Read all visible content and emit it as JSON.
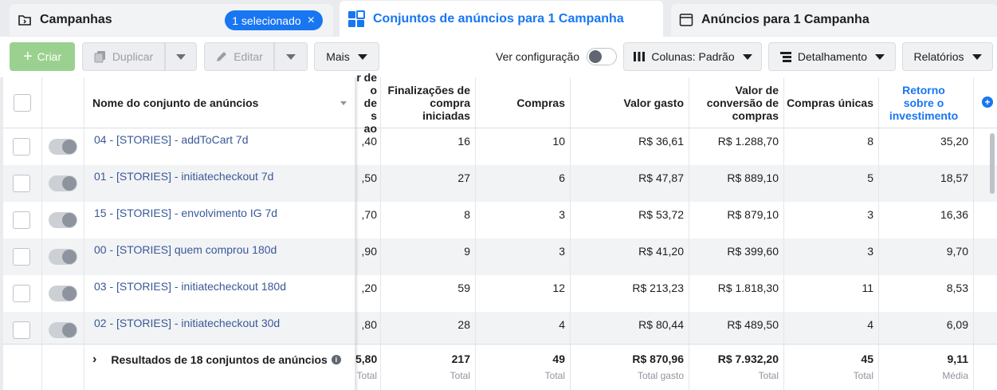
{
  "tabs": {
    "campaigns": {
      "label": "Campanhas",
      "badge": "1 selecionado",
      "badge_close": "×"
    },
    "adsets": {
      "label": "Conjuntos de anúncios para 1 Campanha"
    },
    "ads": {
      "label": "Anúncios para 1 Campanha"
    }
  },
  "toolbar": {
    "create": "Criar",
    "duplicate": "Duplicar",
    "edit": "Editar",
    "more": "Mais",
    "view_config": "Ver configuração",
    "columns": "Colunas: Padrão",
    "breakdown": "Detalhamento",
    "reports": "Relatórios"
  },
  "table": {
    "headers": {
      "name": "Nome do conjunto de anúncios",
      "cut_col_lines": [
        "r de",
        "o de",
        "s ao"
      ],
      "checkouts": "Finalizações de compra iniciadas",
      "purchases": "Compras",
      "spent": "Valor gasto",
      "conv_value": "Valor de conversão de compras",
      "unique_purchases": "Compras únicas",
      "roas": "Retorno sobre o investimento"
    },
    "rows": [
      {
        "name": "04 - [STORIES] - addToCart 7d",
        "cut": ",40",
        "checkouts": "16",
        "purchases": "10",
        "spent": "R$ 36,61",
        "conv_value": "R$ 1.288,70",
        "unique": "8",
        "roas": "35,20"
      },
      {
        "name": "01 - [STORIES] - initiatecheckout 7d",
        "cut": ",50",
        "checkouts": "27",
        "purchases": "6",
        "spent": "R$ 47,87",
        "conv_value": "R$ 889,10",
        "unique": "5",
        "roas": "18,57"
      },
      {
        "name": "15 - [STORIES] - envolvimento IG 7d",
        "cut": ",70",
        "checkouts": "8",
        "purchases": "3",
        "spent": "R$ 53,72",
        "conv_value": "R$ 879,10",
        "unique": "3",
        "roas": "16,36"
      },
      {
        "name": "00 - [STORIES] quem comprou 180d",
        "cut": ",90",
        "checkouts": "9",
        "purchases": "3",
        "spent": "R$ 41,20",
        "conv_value": "R$ 399,60",
        "unique": "3",
        "roas": "9,70"
      },
      {
        "name": "03 - [STORIES] - initiatecheckout 180d",
        "cut": ",20",
        "checkouts": "59",
        "purchases": "12",
        "spent": "R$ 213,23",
        "conv_value": "R$ 1.818,30",
        "unique": "11",
        "roas": "8,53"
      },
      {
        "name": "02 - [STORIES] - initiatecheckout 30d",
        "cut": ",80",
        "checkouts": "28",
        "purchases": "4",
        "spent": "R$ 80,44",
        "conv_value": "R$ 489,50",
        "unique": "4",
        "roas": "6,09"
      }
    ],
    "footer": {
      "label": "Resultados de 18 conjuntos de anúncios",
      "info_glyph": "i",
      "cut": "5,80",
      "cut_sub": "Total",
      "checkouts": "217",
      "checkouts_sub": "Total",
      "purchases": "49",
      "purchases_sub": "Total",
      "spent": "R$ 870,96",
      "spent_sub": "Total gasto",
      "conv_value": "R$ 7.932,20",
      "conv_value_sub": "Total",
      "unique": "45",
      "unique_sub": "Total",
      "roas": "9,11",
      "roas_sub": "Média"
    }
  },
  "icons": {
    "add_column": "+",
    "chevron": "›",
    "plus": "+"
  }
}
